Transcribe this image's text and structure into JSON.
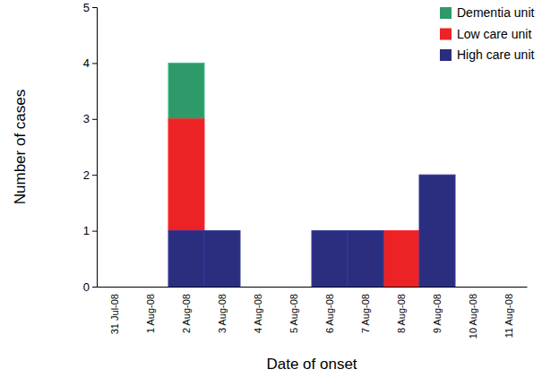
{
  "chart_data": {
    "type": "bar",
    "stacked": true,
    "x_label": "Date of onset",
    "y_label": "Number of cases",
    "categories": [
      "31 Jul-08",
      "1 Aug-08",
      "2 Aug-08",
      "3 Aug-08",
      "4 Aug-08",
      "5 Aug-08",
      "6 Aug-08",
      "7 Aug-08",
      "8 Aug-08",
      "9 Aug-08",
      "10 Aug-08",
      "11 Aug-08"
    ],
    "series": [
      {
        "name": "Dementia unit",
        "color": "#2e9a6a",
        "values": [
          0,
          0,
          1,
          0,
          0,
          0,
          0,
          0,
          0,
          0,
          0,
          0
        ]
      },
      {
        "name": "Low care unit",
        "color": "#ed2224",
        "values": [
          0,
          0,
          2,
          0,
          0,
          0,
          0,
          0,
          1,
          0,
          0,
          0
        ]
      },
      {
        "name": "High care unit",
        "color": "#2b2e7e",
        "values": [
          0,
          0,
          1,
          1,
          0,
          0,
          1,
          1,
          0,
          2,
          0,
          0
        ]
      }
    ],
    "ylim": [
      0,
      5
    ],
    "yticks": [
      0,
      1,
      2,
      3,
      4,
      5
    ],
    "legend": "upper right"
  }
}
